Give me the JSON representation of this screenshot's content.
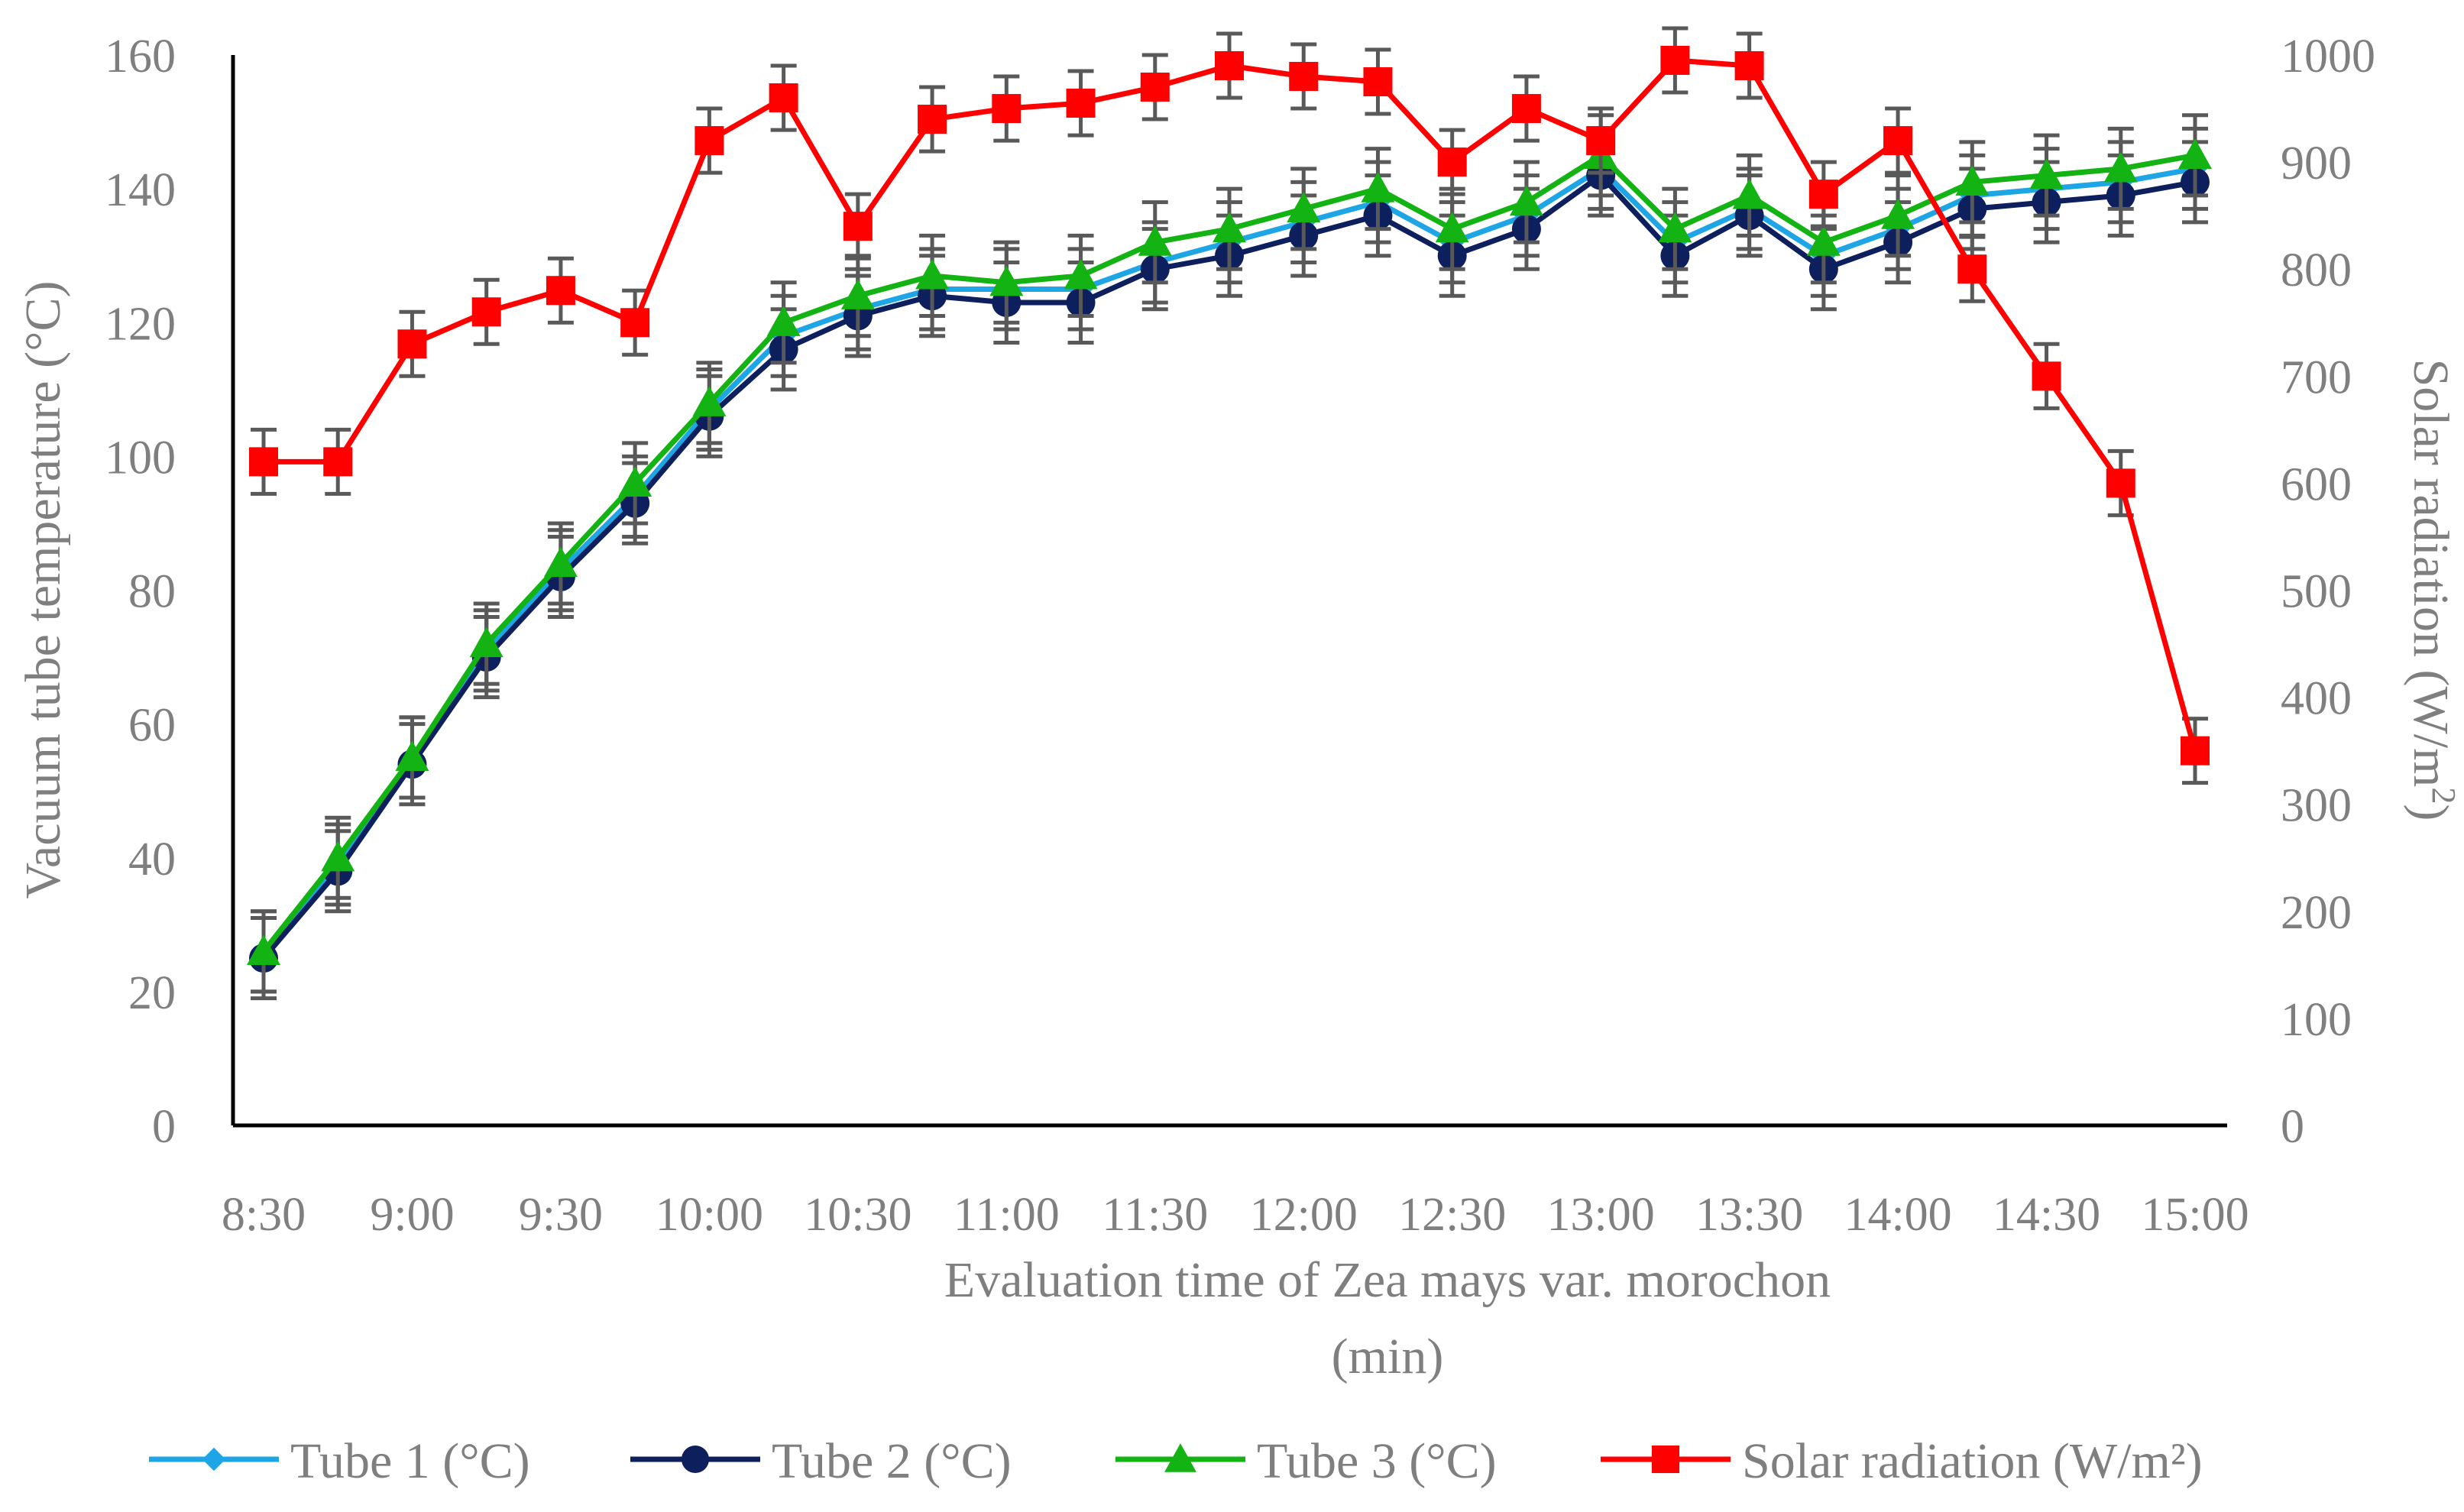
{
  "chart_data": {
    "type": "line",
    "title": "",
    "xlabel_line1": "Evaluation time of Zea mays var. morochon",
    "xlabel_line2": "(min)",
    "ylabel_left": "Vacuum tube temperature (°C)",
    "ylabel_right_main": "Solar radiation (W/m",
    "ylabel_right_sup": "2",
    "ylabel_right_close": ")",
    "ylim_left": [
      0,
      160
    ],
    "yticks_left": [
      "0",
      "20",
      "40",
      "60",
      "80",
      "100",
      "120",
      "140",
      "160"
    ],
    "ylim_right": [
      0,
      1000
    ],
    "yticks_right": [
      "0",
      "100",
      "200",
      "300",
      "400",
      "500",
      "600",
      "700",
      "800",
      "900",
      "1000"
    ],
    "x": [
      "8:30",
      "8:45",
      "9:00",
      "9:15",
      "9:30",
      "9:45",
      "10:00",
      "10:15",
      "10:30",
      "10:45",
      "11:00",
      "11:15",
      "11:30",
      "11:45",
      "12:00",
      "12:15",
      "12:30",
      "12:45",
      "13:00",
      "13:15",
      "13:30",
      "13:45",
      "14:00",
      "14:15",
      "14:30",
      "14:45",
      "15:00"
    ],
    "x_tick_labels": [
      "8:30",
      "9:00",
      "9:30",
      "10:00",
      "10:30",
      "11:00",
      "11:30",
      "12:00",
      "12:30",
      "13:00",
      "13:30",
      "14:00",
      "14:30",
      "15:00"
    ],
    "error_bar_temp": 6,
    "error_bar_radiation": 30,
    "series": [
      {
        "name": "Tube 1 (°C)",
        "axis": "left",
        "color": "#1ea5e6",
        "marker": "diamond",
        "values": [
          26,
          39,
          55,
          71,
          83,
          94,
          107,
          118,
          122,
          125,
          125,
          125,
          129,
          132,
          135,
          138,
          132,
          136,
          143,
          132,
          137,
          130,
          134,
          139,
          140,
          141,
          143
        ]
      },
      {
        "name": "Tube 2 (°C)",
        "axis": "left",
        "color": "#0d1f5c",
        "marker": "circle",
        "values": [
          25,
          38,
          54,
          70,
          82,
          93,
          106,
          116,
          121,
          124,
          123,
          123,
          128,
          130,
          133,
          136,
          130,
          134,
          142,
          130,
          136,
          128,
          132,
          137,
          138,
          139,
          141
        ]
      },
      {
        "name": "Tube 3 (°C)",
        "axis": "left",
        "color": "#12b312",
        "marker": "triangle",
        "values": [
          26,
          40,
          55,
          72,
          84,
          96,
          108,
          120,
          124,
          127,
          126,
          127,
          132,
          134,
          137,
          140,
          134,
          138,
          145,
          134,
          139,
          132,
          136,
          141,
          142,
          143,
          145
        ]
      },
      {
        "name": "Solar radiation (W/m²)",
        "axis": "right",
        "color": "#ff0000",
        "marker": "square",
        "values": [
          620,
          620,
          730,
          760,
          780,
          750,
          920,
          960,
          840,
          940,
          950,
          955,
          970,
          990,
          980,
          975,
          900,
          950,
          920,
          995,
          990,
          870,
          920,
          800,
          700,
          600,
          350
        ]
      }
    ]
  }
}
